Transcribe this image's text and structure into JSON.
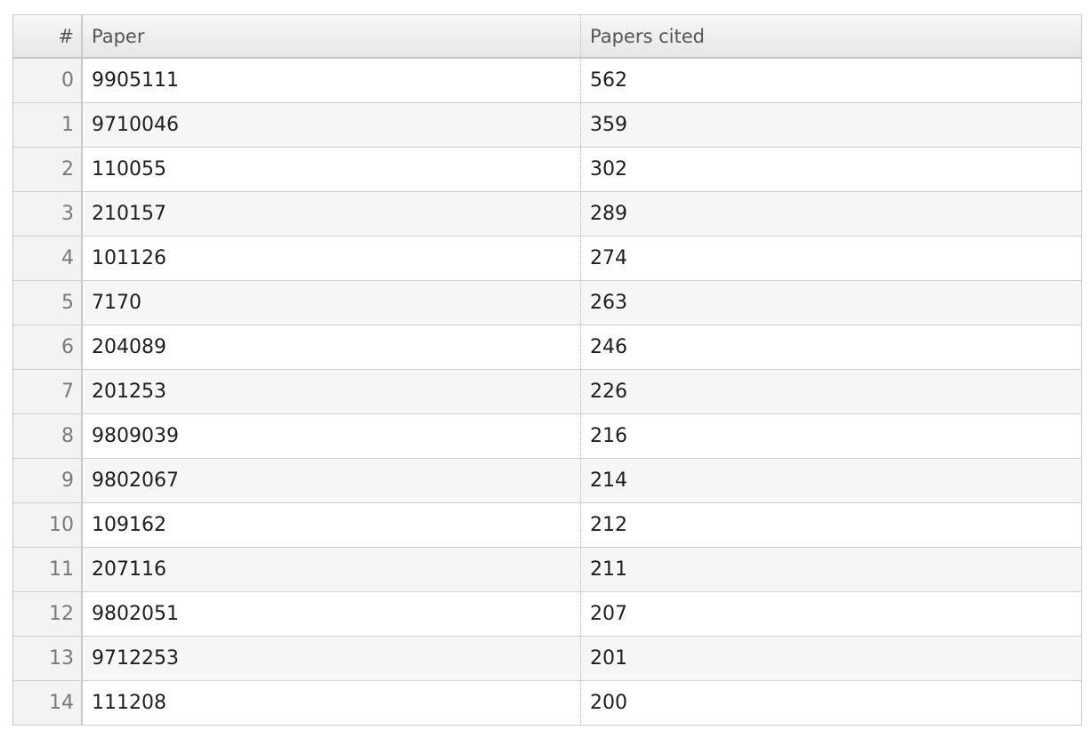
{
  "table": {
    "columns": {
      "index": "#",
      "paper": "Paper",
      "cited": "Papers cited"
    },
    "rows": [
      {
        "index": "0",
        "paper": "9905111",
        "cited": "562"
      },
      {
        "index": "1",
        "paper": "9710046",
        "cited": "359"
      },
      {
        "index": "2",
        "paper": "110055",
        "cited": "302"
      },
      {
        "index": "3",
        "paper": "210157",
        "cited": "289"
      },
      {
        "index": "4",
        "paper": "101126",
        "cited": "274"
      },
      {
        "index": "5",
        "paper": "7170",
        "cited": "263"
      },
      {
        "index": "6",
        "paper": "204089",
        "cited": "246"
      },
      {
        "index": "7",
        "paper": "201253",
        "cited": "226"
      },
      {
        "index": "8",
        "paper": "9809039",
        "cited": "216"
      },
      {
        "index": "9",
        "paper": "9802067",
        "cited": "214"
      },
      {
        "index": "10",
        "paper": "109162",
        "cited": "212"
      },
      {
        "index": "11",
        "paper": "207116",
        "cited": "211"
      },
      {
        "index": "12",
        "paper": "9802051",
        "cited": "207"
      },
      {
        "index": "13",
        "paper": "9712253",
        "cited": "201"
      },
      {
        "index": "14",
        "paper": "111208",
        "cited": "200"
      }
    ]
  }
}
